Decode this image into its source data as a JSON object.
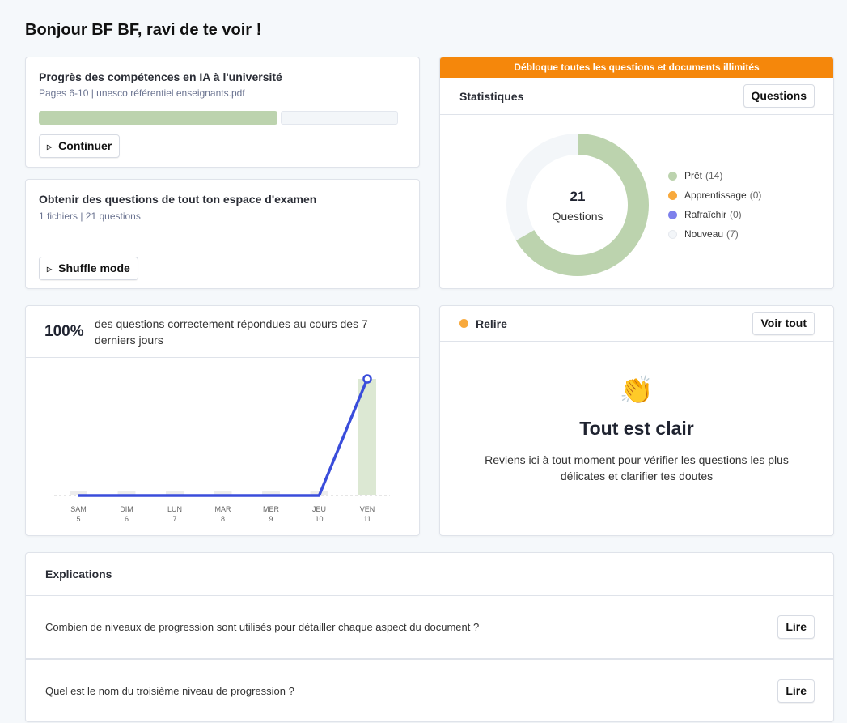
{
  "greeting": "Bonjour BF BF, ravi de te voir !",
  "progress_card": {
    "title": "Progrès des compétences en IA à l'université",
    "subtitle": "Pages 6-10 | unesco référentiel enseignants.pdf",
    "progress": 0.67,
    "button": "Continuer"
  },
  "exam_card": {
    "title": "Obtenir des questions de tout ton espace d'examen",
    "subtitle": "1 fichiers | 21 questions",
    "button": "Shuffle mode"
  },
  "stats": {
    "banner": "Débloque toutes les questions et documents illimités",
    "title": "Statistiques",
    "button": "Questions",
    "total": "21",
    "total_label": "Questions",
    "legend": [
      {
        "label": "Prêt",
        "count": "(14)",
        "value": 14,
        "color": "#bcd3ae"
      },
      {
        "label": "Apprentissage",
        "count": "(0)",
        "value": 0,
        "color": "#f8a93c"
      },
      {
        "label": "Rafraîchir",
        "count": "(0)",
        "value": 0,
        "color": "#7d80ec"
      },
      {
        "label": "Nouveau",
        "count": "(7)",
        "value": 7,
        "color": "#f3f6f9"
      }
    ]
  },
  "accuracy": {
    "percent": "100%",
    "text": "des questions correctement répondues au cours des 7 derniers jours"
  },
  "chart_data": {
    "type": "line",
    "categories": [
      "SAM 5",
      "DIM 6",
      "LUN 7",
      "MAR 8",
      "MER 9",
      "JEU 10",
      "VEN 11"
    ],
    "days": [
      {
        "d": "SAM",
        "n": "5"
      },
      {
        "d": "DIM",
        "n": "6"
      },
      {
        "d": "LUN",
        "n": "7"
      },
      {
        "d": "MAR",
        "n": "8"
      },
      {
        "d": "MER",
        "n": "9"
      },
      {
        "d": "JEU",
        "n": "10"
      },
      {
        "d": "VEN",
        "n": "11"
      }
    ],
    "values": [
      0,
      0,
      0,
      0,
      0,
      0,
      100
    ],
    "ylim": [
      0,
      100
    ]
  },
  "review": {
    "title": "Relire",
    "button": "Voir tout",
    "emoji": "👏",
    "heading": "Tout est clair",
    "text": "Reviens ici à tout moment pour vérifier les questions les plus délicates et clarifier tes doutes"
  },
  "explanations": {
    "title": "Explications",
    "items": [
      {
        "q": "Combien de niveaux de progression sont utilisés pour détailler chaque aspect du document ?",
        "button": "Lire"
      },
      {
        "q": "Quel est le nom du troisième niveau de progression ?",
        "button": "Lire"
      }
    ]
  }
}
